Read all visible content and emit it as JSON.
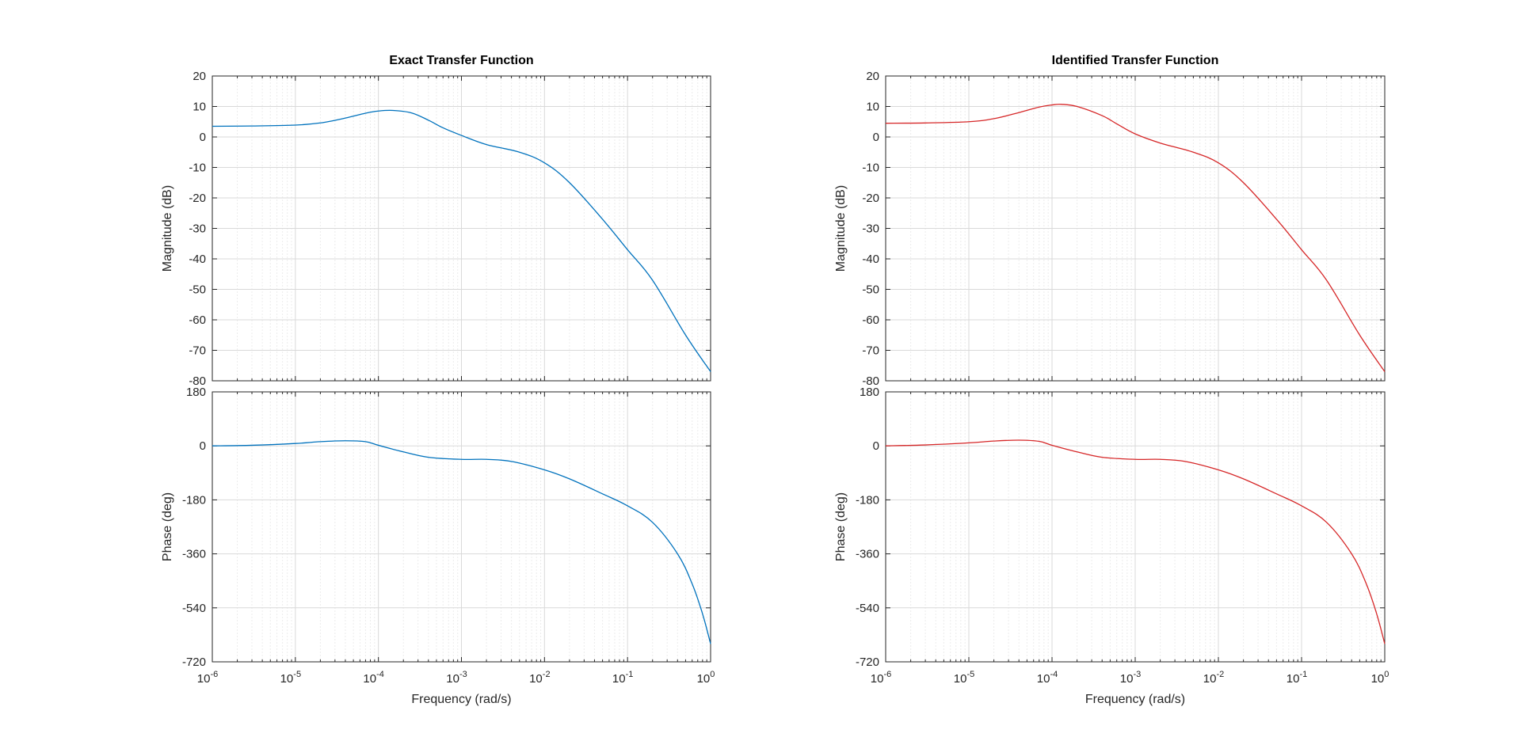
{
  "chart_data": [
    {
      "type": "line",
      "title": "Exact Transfer Function",
      "series_color": "#0072BD",
      "xlabel": "Frequency  (rad/s)",
      "x_scale": "log",
      "xlim": [
        1e-06,
        1
      ],
      "x_ticks": [
        {
          "base": "10",
          "exp": "-6"
        },
        {
          "base": "10",
          "exp": "-5"
        },
        {
          "base": "10",
          "exp": "-4"
        },
        {
          "base": "10",
          "exp": "-3"
        },
        {
          "base": "10",
          "exp": "-2"
        },
        {
          "base": "10",
          "exp": "-1"
        },
        {
          "base": "10",
          "exp": "0"
        }
      ],
      "magnitude": {
        "ylabel": "Magnitude (dB)",
        "ylim": [
          -80,
          20
        ],
        "y_ticks": [
          "20",
          "10",
          "0",
          "-10",
          "-20",
          "-30",
          "-40",
          "-50",
          "-60",
          "-70",
          "-80"
        ],
        "x": [
          1e-06,
          3e-06,
          1e-05,
          2e-05,
          4e-05,
          7e-05,
          0.0001,
          0.00015,
          0.00025,
          0.0004,
          0.0006,
          0.001,
          0.002,
          0.005,
          0.01,
          0.02,
          0.05,
          0.1,
          0.2,
          0.5,
          1
        ],
        "y": [
          3.5,
          3.6,
          3.9,
          4.6,
          6.2,
          7.8,
          8.5,
          8.7,
          7.9,
          5.5,
          3.0,
          0.5,
          -2.5,
          -5.0,
          -8.5,
          -15,
          -27,
          -37,
          -47,
          -65,
          -77
        ]
      },
      "phase": {
        "ylabel": "Phase (deg)",
        "ylim": [
          -720,
          180
        ],
        "y_ticks": [
          "180",
          "0",
          "-180",
          "-360",
          "-540",
          "-720"
        ],
        "x": [
          1e-06,
          3e-06,
          1e-05,
          2e-05,
          4e-05,
          7e-05,
          0.0001,
          0.0002,
          0.0004,
          0.001,
          0.002,
          0.004,
          0.01,
          0.02,
          0.05,
          0.1,
          0.2,
          0.4,
          0.6,
          0.8,
          1
        ],
        "y": [
          0,
          2,
          8,
          14,
          17,
          14,
          2,
          -20,
          -38,
          -45,
          -45,
          -52,
          -80,
          -110,
          -160,
          -200,
          -255,
          -360,
          -460,
          -560,
          -660
        ]
      }
    },
    {
      "type": "line",
      "title": "Identified Transfer Function",
      "series_color": "#D62728",
      "xlabel": "Frequency  (rad/s)",
      "x_scale": "log",
      "xlim": [
        1e-06,
        1
      ],
      "x_ticks": [
        {
          "base": "10",
          "exp": "-6"
        },
        {
          "base": "10",
          "exp": "-5"
        },
        {
          "base": "10",
          "exp": "-4"
        },
        {
          "base": "10",
          "exp": "-3"
        },
        {
          "base": "10",
          "exp": "-2"
        },
        {
          "base": "10",
          "exp": "-1"
        },
        {
          "base": "10",
          "exp": "0"
        }
      ],
      "magnitude": {
        "ylabel": "Magnitude (dB)",
        "ylim": [
          -80,
          20
        ],
        "y_ticks": [
          "20",
          "10",
          "0",
          "-10",
          "-20",
          "-30",
          "-40",
          "-50",
          "-60",
          "-70",
          "-80"
        ],
        "x": [
          1e-06,
          3e-06,
          1e-05,
          2e-05,
          4e-05,
          7e-05,
          0.0001,
          0.00013,
          0.0002,
          0.0004,
          0.0006,
          0.001,
          0.002,
          0.005,
          0.01,
          0.02,
          0.05,
          0.1,
          0.2,
          0.5,
          1
        ],
        "y": [
          4.5,
          4.6,
          5.0,
          6.0,
          8.0,
          9.8,
          10.5,
          10.7,
          10.0,
          7.0,
          4.3,
          1.0,
          -2.0,
          -5.0,
          -8.5,
          -15,
          -27,
          -37,
          -47,
          -65,
          -77
        ]
      },
      "phase": {
        "ylabel": "Phase (deg)",
        "ylim": [
          -720,
          180
        ],
        "y_ticks": [
          "180",
          "0",
          "-180",
          "-360",
          "-540",
          "-720"
        ],
        "x": [
          1e-06,
          3e-06,
          1e-05,
          2e-05,
          4e-05,
          7e-05,
          0.0001,
          0.0002,
          0.0004,
          0.001,
          0.002,
          0.004,
          0.01,
          0.02,
          0.05,
          0.1,
          0.2,
          0.4,
          0.6,
          0.8,
          1
        ],
        "y": [
          0,
          3,
          10,
          16,
          19,
          15,
          2,
          -20,
          -38,
          -45,
          -45,
          -52,
          -80,
          -110,
          -160,
          -200,
          -255,
          -360,
          -460,
          -560,
          -660
        ]
      }
    }
  ]
}
